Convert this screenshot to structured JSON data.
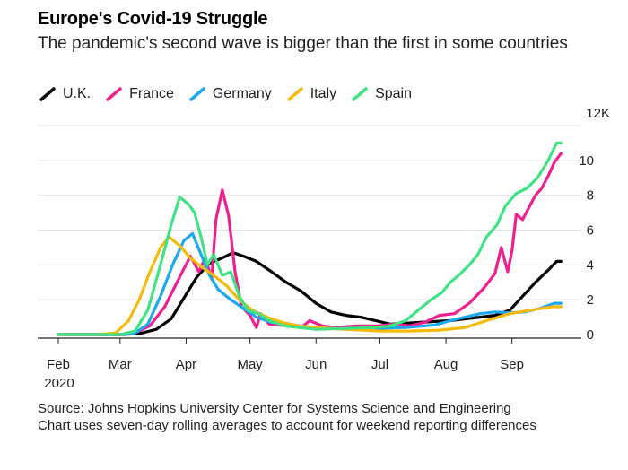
{
  "header": {
    "title": "Europe's Covid-19 Struggle",
    "subtitle": "The pandemic's second wave is bigger than the first in some countries"
  },
  "footer": {
    "source": "Source: Johns Hopkins University Center for Systems Science and Engineering",
    "note": "Chart uses seven-day rolling averages to account for weekend reporting differences"
  },
  "chart_data": {
    "type": "line",
    "title": "Europe's Covid-19 Struggle",
    "subtitle": "The pandemic's second wave is bigger than the first in some countries",
    "y_unit_label": "12K",
    "ylim": [
      0,
      12
    ],
    "y_ticks": [
      0,
      2,
      4,
      6,
      8,
      10
    ],
    "y_tick_labels": [
      "0",
      "2",
      "4",
      "6",
      "8",
      "10"
    ],
    "x_ticks": [
      "2020-02-01",
      "2020-03-01",
      "2020-04-01",
      "2020-05-01",
      "2020-06-01",
      "2020-07-01",
      "2020-08-01",
      "2020-09-01"
    ],
    "x_tick_labels": [
      "Feb",
      "Mar",
      "Apr",
      "May",
      "Jun",
      "Jul",
      "Aug",
      "Sep"
    ],
    "x_year_label": "2020",
    "xlim": [
      "2020-02-01",
      "2020-09-26"
    ],
    "grid": true,
    "legend_position": "top-left",
    "series": [
      {
        "name": "U.K.",
        "color": "#000000",
        "points": [
          [
            "2020-02-01",
            0
          ],
          [
            "2020-03-01",
            0
          ],
          [
            "2020-03-10",
            0.05
          ],
          [
            "2020-03-18",
            0.3
          ],
          [
            "2020-03-25",
            0.9
          ],
          [
            "2020-04-01",
            2.3
          ],
          [
            "2020-04-06",
            3.3
          ],
          [
            "2020-04-12",
            4.1
          ],
          [
            "2020-04-18",
            4.4
          ],
          [
            "2020-04-23",
            4.7
          ],
          [
            "2020-04-28",
            4.5
          ],
          [
            "2020-05-04",
            4.2
          ],
          [
            "2020-05-10",
            3.7
          ],
          [
            "2020-05-18",
            3.0
          ],
          [
            "2020-05-25",
            2.5
          ],
          [
            "2020-06-01",
            1.8
          ],
          [
            "2020-06-08",
            1.3
          ],
          [
            "2020-06-15",
            1.1
          ],
          [
            "2020-06-22",
            1.0
          ],
          [
            "2020-06-29",
            0.8
          ],
          [
            "2020-07-06",
            0.6
          ],
          [
            "2020-07-13",
            0.65
          ],
          [
            "2020-07-20",
            0.7
          ],
          [
            "2020-07-27",
            0.75
          ],
          [
            "2020-08-03",
            0.8
          ],
          [
            "2020-08-10",
            0.9
          ],
          [
            "2020-08-17",
            1.0
          ],
          [
            "2020-08-24",
            1.1
          ],
          [
            "2020-08-31",
            1.4
          ],
          [
            "2020-09-06",
            2.2
          ],
          [
            "2020-09-12",
            3.0
          ],
          [
            "2020-09-18",
            3.7
          ],
          [
            "2020-09-22",
            4.2
          ],
          [
            "2020-09-24",
            4.2
          ]
        ]
      },
      {
        "name": "France",
        "color": "#ef1f8f",
        "points": [
          [
            "2020-02-01",
            0
          ],
          [
            "2020-03-01",
            0
          ],
          [
            "2020-03-08",
            0.1
          ],
          [
            "2020-03-15",
            0.5
          ],
          [
            "2020-03-22",
            1.6
          ],
          [
            "2020-03-29",
            3.3
          ],
          [
            "2020-04-03",
            4.5
          ],
          [
            "2020-04-07",
            3.6
          ],
          [
            "2020-04-10",
            4.4
          ],
          [
            "2020-04-13",
            3.2
          ],
          [
            "2020-04-15",
            6.6
          ],
          [
            "2020-04-18",
            8.3
          ],
          [
            "2020-04-21",
            6.8
          ],
          [
            "2020-04-24",
            3.6
          ],
          [
            "2020-04-27",
            1.6
          ],
          [
            "2020-05-01",
            1.1
          ],
          [
            "2020-05-04",
            0.4
          ],
          [
            "2020-05-06",
            1.2
          ],
          [
            "2020-05-10",
            0.6
          ],
          [
            "2020-05-18",
            0.5
          ],
          [
            "2020-05-25",
            0.4
          ],
          [
            "2020-05-29",
            0.8
          ],
          [
            "2020-06-04",
            0.5
          ],
          [
            "2020-06-10",
            0.4
          ],
          [
            "2020-06-20",
            0.5
          ],
          [
            "2020-06-30",
            0.5
          ],
          [
            "2020-07-08",
            0.6
          ],
          [
            "2020-07-15",
            0.5
          ],
          [
            "2020-07-22",
            0.7
          ],
          [
            "2020-07-29",
            1.1
          ],
          [
            "2020-08-05",
            1.2
          ],
          [
            "2020-08-12",
            1.8
          ],
          [
            "2020-08-19",
            2.7
          ],
          [
            "2020-08-24",
            3.5
          ],
          [
            "2020-08-27",
            5.0
          ],
          [
            "2020-08-30",
            3.6
          ],
          [
            "2020-09-01",
            4.8
          ],
          [
            "2020-09-03",
            6.9
          ],
          [
            "2020-09-06",
            6.6
          ],
          [
            "2020-09-09",
            7.3
          ],
          [
            "2020-09-12",
            8.0
          ],
          [
            "2020-09-15",
            8.4
          ],
          [
            "2020-09-18",
            9.1
          ],
          [
            "2020-09-21",
            9.9
          ],
          [
            "2020-09-24",
            10.4
          ]
        ]
      },
      {
        "name": "Germany",
        "color": "#1ba8f0",
        "points": [
          [
            "2020-02-01",
            0
          ],
          [
            "2020-03-01",
            0
          ],
          [
            "2020-03-08",
            0.1
          ],
          [
            "2020-03-14",
            0.6
          ],
          [
            "2020-03-20",
            2.2
          ],
          [
            "2020-03-26",
            4.1
          ],
          [
            "2020-03-31",
            5.4
          ],
          [
            "2020-04-04",
            5.8
          ],
          [
            "2020-04-08",
            4.6
          ],
          [
            "2020-04-12",
            3.4
          ],
          [
            "2020-04-16",
            2.6
          ],
          [
            "2020-04-22",
            2.0
          ],
          [
            "2020-04-28",
            1.5
          ],
          [
            "2020-05-04",
            1.0
          ],
          [
            "2020-05-11",
            0.7
          ],
          [
            "2020-05-18",
            0.6
          ],
          [
            "2020-05-25",
            0.5
          ],
          [
            "2020-06-01",
            0.4
          ],
          [
            "2020-06-15",
            0.3
          ],
          [
            "2020-06-29",
            0.35
          ],
          [
            "2020-07-13",
            0.4
          ],
          [
            "2020-07-27",
            0.55
          ],
          [
            "2020-08-03",
            0.8
          ],
          [
            "2020-08-10",
            1.0
          ],
          [
            "2020-08-17",
            1.2
          ],
          [
            "2020-08-24",
            1.3
          ],
          [
            "2020-08-31",
            1.25
          ],
          [
            "2020-09-07",
            1.3
          ],
          [
            "2020-09-14",
            1.5
          ],
          [
            "2020-09-21",
            1.8
          ],
          [
            "2020-09-24",
            1.8
          ]
        ]
      },
      {
        "name": "Italy",
        "color": "#f7b90a",
        "points": [
          [
            "2020-02-01",
            0
          ],
          [
            "2020-02-20",
            0
          ],
          [
            "2020-02-28",
            0.1
          ],
          [
            "2020-03-05",
            0.8
          ],
          [
            "2020-03-10",
            2.0
          ],
          [
            "2020-03-15",
            3.6
          ],
          [
            "2020-03-20",
            5.0
          ],
          [
            "2020-03-24",
            5.6
          ],
          [
            "2020-03-29",
            5.1
          ],
          [
            "2020-04-03",
            4.4
          ],
          [
            "2020-04-08",
            3.9
          ],
          [
            "2020-04-14",
            3.4
          ],
          [
            "2020-04-20",
            2.8
          ],
          [
            "2020-04-26",
            2.0
          ],
          [
            "2020-05-02",
            1.4
          ],
          [
            "2020-05-09",
            1.0
          ],
          [
            "2020-05-16",
            0.7
          ],
          [
            "2020-05-24",
            0.5
          ],
          [
            "2020-06-01",
            0.4
          ],
          [
            "2020-06-15",
            0.3
          ],
          [
            "2020-07-01",
            0.2
          ],
          [
            "2020-07-15",
            0.2
          ],
          [
            "2020-07-29",
            0.25
          ],
          [
            "2020-08-10",
            0.4
          ],
          [
            "2020-08-20",
            0.8
          ],
          [
            "2020-08-31",
            1.2
          ],
          [
            "2020-09-10",
            1.4
          ],
          [
            "2020-09-20",
            1.6
          ],
          [
            "2020-09-24",
            1.6
          ]
        ]
      },
      {
        "name": "Spain",
        "color": "#3fe383",
        "points": [
          [
            "2020-02-01",
            0
          ],
          [
            "2020-03-01",
            0
          ],
          [
            "2020-03-08",
            0.2
          ],
          [
            "2020-03-14",
            1.4
          ],
          [
            "2020-03-20",
            4.0
          ],
          [
            "2020-03-25",
            6.3
          ],
          [
            "2020-03-29",
            7.9
          ],
          [
            "2020-04-02",
            7.5
          ],
          [
            "2020-04-05",
            7.0
          ],
          [
            "2020-04-08",
            5.6
          ],
          [
            "2020-04-11",
            4.0
          ],
          [
            "2020-04-14",
            4.6
          ],
          [
            "2020-04-18",
            3.4
          ],
          [
            "2020-04-22",
            3.6
          ],
          [
            "2020-04-26",
            2.2
          ],
          [
            "2020-04-30",
            1.4
          ],
          [
            "2020-05-05",
            1.2
          ],
          [
            "2020-05-10",
            0.8
          ],
          [
            "2020-05-17",
            0.5
          ],
          [
            "2020-05-24",
            0.4
          ],
          [
            "2020-06-01",
            0.3
          ],
          [
            "2020-06-15",
            0.35
          ],
          [
            "2020-06-29",
            0.4
          ],
          [
            "2020-07-06",
            0.5
          ],
          [
            "2020-07-13",
            0.8
          ],
          [
            "2020-07-20",
            1.5
          ],
          [
            "2020-07-25",
            2.0
          ],
          [
            "2020-07-30",
            2.4
          ],
          [
            "2020-08-03",
            3.0
          ],
          [
            "2020-08-07",
            3.4
          ],
          [
            "2020-08-12",
            4.0
          ],
          [
            "2020-08-16",
            4.6
          ],
          [
            "2020-08-20",
            5.6
          ],
          [
            "2020-08-25",
            6.3
          ],
          [
            "2020-08-29",
            7.4
          ],
          [
            "2020-09-03",
            8.1
          ],
          [
            "2020-09-08",
            8.4
          ],
          [
            "2020-09-13",
            9.0
          ],
          [
            "2020-09-18",
            10.0
          ],
          [
            "2020-09-22",
            11.0
          ],
          [
            "2020-09-24",
            11.0
          ]
        ]
      }
    ]
  }
}
